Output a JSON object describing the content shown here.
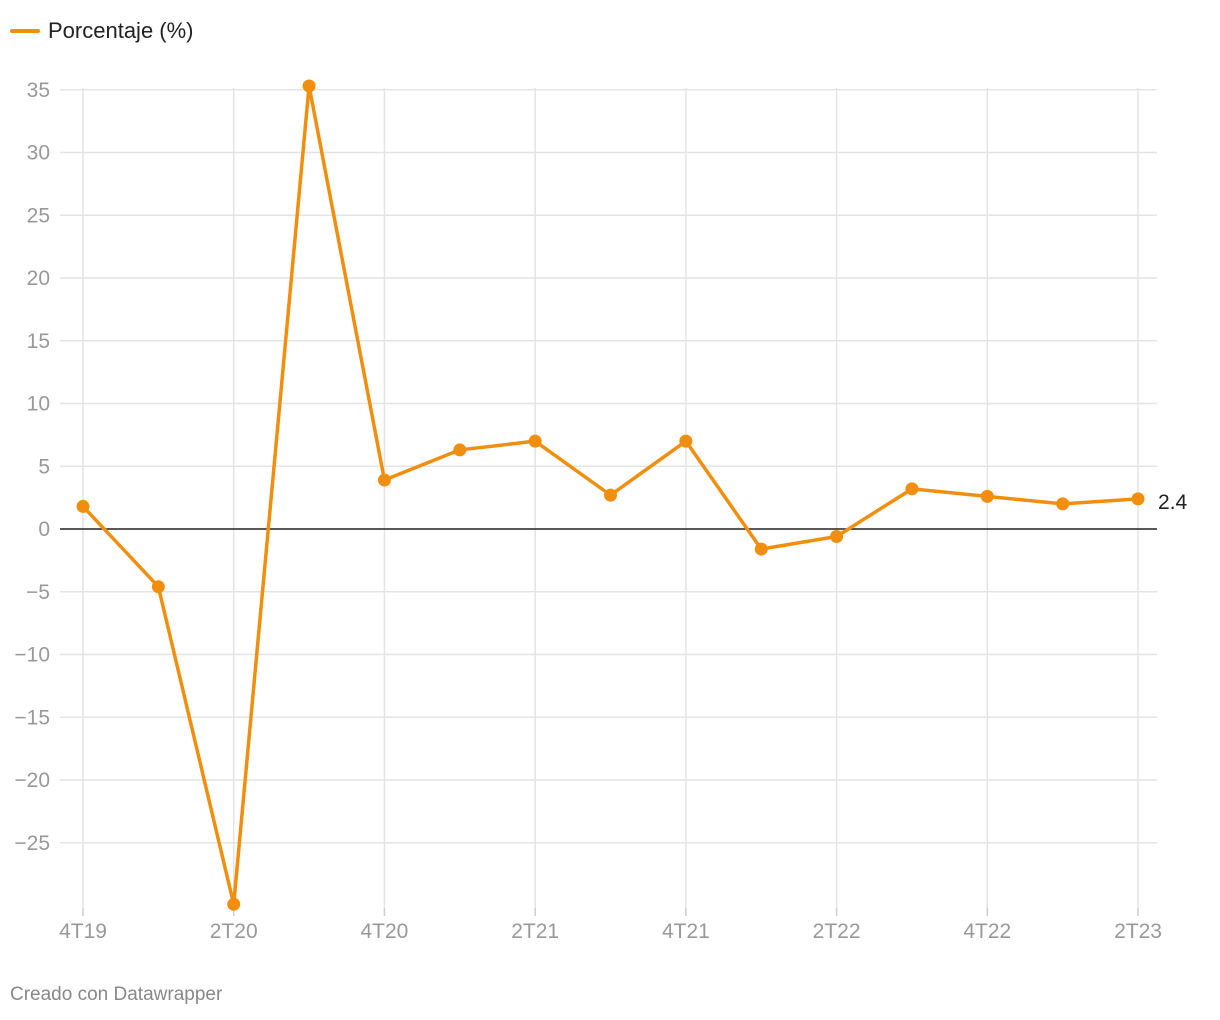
{
  "legend": {
    "label": "Porcentaje (%)"
  },
  "footer": {
    "credit": "Creado con Datawrapper"
  },
  "colors": {
    "series": "#f28e0e",
    "grid": "#e4e4e4",
    "zero": "#222222",
    "tick": "#999999"
  },
  "chart_data": {
    "type": "line",
    "title": "",
    "xlabel": "",
    "ylabel": "",
    "x": [
      "4T19",
      "1T20",
      "2T20",
      "3T20",
      "4T20",
      "1T21",
      "2T21",
      "3T21",
      "4T21",
      "1T22",
      "2T22",
      "3T22",
      "4T22",
      "1T23",
      "2T23"
    ],
    "x_tick_labels": [
      "4T19",
      "2T20",
      "4T20",
      "2T21",
      "4T21",
      "2T22",
      "4T22",
      "2T23"
    ],
    "y_ticks": [
      35,
      30,
      25,
      20,
      15,
      10,
      5,
      0,
      -5,
      -10,
      -15,
      -20,
      -25
    ],
    "y_tick_labels": [
      "35",
      "30",
      "25",
      "20",
      "15",
      "10",
      "5",
      "0",
      "−5",
      "−10",
      "−15",
      "−20",
      "−25"
    ],
    "ylim": [
      -30,
      35
    ],
    "grid": true,
    "legend_position": "top-left",
    "series": [
      {
        "name": "Porcentaje (%)",
        "values": [
          1.8,
          -4.6,
          -29.9,
          35.3,
          3.9,
          6.3,
          7.0,
          2.7,
          7.0,
          -1.6,
          -0.6,
          3.2,
          2.6,
          2.0,
          2.4
        ]
      }
    ],
    "end_label": "2.4"
  }
}
